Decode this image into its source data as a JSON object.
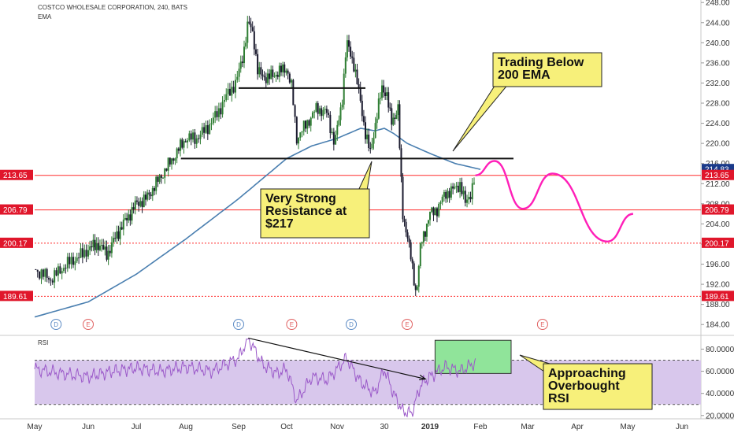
{
  "header": {
    "title": "COSTCO WHOLESALE CORPORATION, 240, BATS",
    "indicator": "EMA"
  },
  "rsi_label": "RSI",
  "colors": {
    "candle_up": "#2e7d32",
    "candle_down": "#1a1a2e",
    "ema": "#4a7fb0",
    "support_line": "#ff2b2b",
    "projection": "#ff1fb8",
    "rsi_line": "#9b59c9",
    "rsi_band": "#d8c7ec",
    "callout_fill": "#f7f07a",
    "overbought_box": "#90e49a",
    "price_label_bg": "#e0162b",
    "price_label_blue": "#1a3a8a"
  },
  "callouts": {
    "trading_below": [
      "Trading Below",
      "200 EMA"
    ],
    "resistance": [
      "Very Strong",
      "Resistance at",
      "$217"
    ],
    "overbought": [
      "Approaching",
      "Overbought",
      "RSI"
    ]
  },
  "events": {
    "dividends": [
      "D",
      "D",
      "D"
    ],
    "earnings": [
      "E",
      "E",
      "E",
      "E"
    ]
  },
  "chart_data": [
    {
      "type": "candlestick",
      "title": "COSTCO WHOLESALE CORPORATION, 240, BATS",
      "x_tick_labels": [
        "May",
        "Jun",
        "Jul",
        "Aug",
        "Sep",
        "Oct",
        "Nov",
        "30",
        "2019",
        "Feb",
        "Mar",
        "Apr",
        "May",
        "Jun"
      ],
      "y_tick_labels": [
        "248.00",
        "244.00",
        "240.00",
        "236.00",
        "232.00",
        "228.00",
        "224.00",
        "220.00",
        "216.00",
        "212.00",
        "208.00",
        "204.00",
        "200.00",
        "196.00",
        "192.00",
        "188.00",
        "184.00"
      ],
      "ylim": [
        182,
        248.5
      ],
      "price_labels": [
        {
          "value": 214.83,
          "label": "214.83",
          "style": "blue"
        },
        {
          "value": 213.65,
          "label": "213.65",
          "style": "red"
        },
        {
          "value": 206.79,
          "label": "206.79",
          "style": "red"
        },
        {
          "value": 200.17,
          "label": "200.17",
          "style": "red"
        },
        {
          "value": 189.61,
          "label": "189.61",
          "style": "red"
        }
      ],
      "horizontal_levels": [
        {
          "value": 213.65,
          "style": "solid",
          "color": "red"
        },
        {
          "value": 206.79,
          "style": "solid",
          "color": "red"
        },
        {
          "value": 200.17,
          "style": "dotted",
          "color": "red"
        },
        {
          "value": 189.61,
          "style": "dotted",
          "color": "red"
        }
      ],
      "trend_levels": [
        {
          "value": 231.0,
          "from_month": 4.0,
          "to_month": 6.6,
          "label": "upper range"
        },
        {
          "value": 217.0,
          "from_month": 2.9,
          "to_month": 9.7,
          "label": "resistance"
        }
      ],
      "price_path": [
        {
          "t": 0.0,
          "price": 195
        },
        {
          "t": 0.3,
          "price": 193
        },
        {
          "t": 0.6,
          "price": 196
        },
        {
          "t": 0.9,
          "price": 198
        },
        {
          "t": 1.0,
          "price": 199
        },
        {
          "t": 1.2,
          "price": 200
        },
        {
          "t": 1.4,
          "price": 198
        },
        {
          "t": 1.6,
          "price": 202
        },
        {
          "t": 1.8,
          "price": 205
        },
        {
          "t": 2.0,
          "price": 208
        },
        {
          "t": 2.2,
          "price": 209
        },
        {
          "t": 2.4,
          "price": 212
        },
        {
          "t": 2.6,
          "price": 215
        },
        {
          "t": 2.8,
          "price": 218
        },
        {
          "t": 3.0,
          "price": 221
        },
        {
          "t": 3.2,
          "price": 221
        },
        {
          "t": 3.4,
          "price": 223
        },
        {
          "t": 3.6,
          "price": 226
        },
        {
          "t": 3.8,
          "price": 230
        },
        {
          "t": 3.95,
          "price": 232
        },
        {
          "t": 4.1,
          "price": 238
        },
        {
          "t": 4.2,
          "price": 244
        },
        {
          "t": 4.3,
          "price": 242
        },
        {
          "t": 4.4,
          "price": 234
        },
        {
          "t": 4.6,
          "price": 233
        },
        {
          "t": 4.8,
          "price": 234
        },
        {
          "t": 5.0,
          "price": 235
        },
        {
          "t": 5.1,
          "price": 231
        },
        {
          "t": 5.2,
          "price": 221
        },
        {
          "t": 5.4,
          "price": 224
        },
        {
          "t": 5.6,
          "price": 227
        },
        {
          "t": 5.8,
          "price": 226
        },
        {
          "t": 5.95,
          "price": 220
        },
        {
          "t": 6.1,
          "price": 228
        },
        {
          "t": 6.2,
          "price": 240
        },
        {
          "t": 6.35,
          "price": 236
        },
        {
          "t": 6.5,
          "price": 228
        },
        {
          "t": 6.6,
          "price": 222
        },
        {
          "t": 6.7,
          "price": 218
        },
        {
          "t": 6.85,
          "price": 226
        },
        {
          "t": 6.95,
          "price": 231
        },
        {
          "t": 7.05,
          "price": 230
        },
        {
          "t": 7.15,
          "price": 224
        },
        {
          "t": 7.3,
          "price": 227
        },
        {
          "t": 7.35,
          "price": 216
        },
        {
          "t": 7.4,
          "price": 206
        },
        {
          "t": 7.5,
          "price": 202
        },
        {
          "t": 7.6,
          "price": 196
        },
        {
          "t": 7.7,
          "price": 190
        },
        {
          "t": 7.8,
          "price": 200
        },
        {
          "t": 7.9,
          "price": 203
        },
        {
          "t": 8.0,
          "price": 206
        },
        {
          "t": 8.15,
          "price": 207
        },
        {
          "t": 8.3,
          "price": 210
        },
        {
          "t": 8.5,
          "price": 211
        },
        {
          "t": 8.6,
          "price": 212
        },
        {
          "t": 8.7,
          "price": 208
        },
        {
          "t": 8.8,
          "price": 210
        },
        {
          "t": 8.9,
          "price": 213.65
        }
      ],
      "ema_path": [
        {
          "t": 0.0,
          "value": 185.5
        },
        {
          "t": 1.0,
          "value": 188.5
        },
        {
          "t": 2.0,
          "value": 194
        },
        {
          "t": 3.0,
          "value": 201
        },
        {
          "t": 3.5,
          "value": 205
        },
        {
          "t": 4.0,
          "value": 209
        },
        {
          "t": 4.5,
          "value": 213
        },
        {
          "t": 5.0,
          "value": 217
        },
        {
          "t": 5.5,
          "value": 219.5
        },
        {
          "t": 6.0,
          "value": 221
        },
        {
          "t": 6.5,
          "value": 223
        },
        {
          "t": 6.8,
          "value": 222.5
        },
        {
          "t": 7.0,
          "value": 223
        },
        {
          "t": 7.2,
          "value": 222
        },
        {
          "t": 7.5,
          "value": 220
        },
        {
          "t": 8.0,
          "value": 218
        },
        {
          "t": 8.5,
          "value": 216
        },
        {
          "t": 9.0,
          "value": 214.83
        }
      ],
      "projection_path": [
        {
          "t": 8.9,
          "price": 213.65
        },
        {
          "t": 9.3,
          "price": 216.5
        },
        {
          "t": 9.9,
          "price": 207
        },
        {
          "t": 10.5,
          "price": 214
        },
        {
          "t": 11.6,
          "price": 200.5
        },
        {
          "t": 12.1,
          "price": 206
        }
      ]
    },
    {
      "type": "line",
      "title": "RSI",
      "y_tick_labels": [
        "80.0000",
        "60.0000",
        "40.0000",
        "20.0000"
      ],
      "ylim": [
        17,
        91
      ],
      "band": [
        30,
        70
      ],
      "series": [
        {
          "values": [
            {
              "t": 0.0,
              "v": 62
            },
            {
              "t": 0.5,
              "v": 58
            },
            {
              "t": 1.0,
              "v": 55
            },
            {
              "t": 1.5,
              "v": 60
            },
            {
              "t": 2.0,
              "v": 63
            },
            {
              "t": 2.5,
              "v": 60
            },
            {
              "t": 3.0,
              "v": 64
            },
            {
              "t": 3.5,
              "v": 60
            },
            {
              "t": 4.0,
              "v": 72
            },
            {
              "t": 4.2,
              "v": 90
            },
            {
              "t": 4.5,
              "v": 66
            },
            {
              "t": 4.8,
              "v": 58
            },
            {
              "t": 5.0,
              "v": 62
            },
            {
              "t": 5.2,
              "v": 33
            },
            {
              "t": 5.5,
              "v": 55
            },
            {
              "t": 5.8,
              "v": 52
            },
            {
              "t": 6.2,
              "v": 72
            },
            {
              "t": 6.5,
              "v": 50
            },
            {
              "t": 6.8,
              "v": 40
            },
            {
              "t": 7.0,
              "v": 62
            },
            {
              "t": 7.2,
              "v": 40
            },
            {
              "t": 7.4,
              "v": 24
            },
            {
              "t": 7.6,
              "v": 22
            },
            {
              "t": 7.8,
              "v": 48
            },
            {
              "t": 8.0,
              "v": 55
            },
            {
              "t": 8.3,
              "v": 64
            },
            {
              "t": 8.6,
              "v": 60
            },
            {
              "t": 8.9,
              "v": 68
            }
          ]
        }
      ],
      "trendline": [
        {
          "t": 4.2,
          "v": 90
        },
        {
          "t": 7.9,
          "v": 53
        }
      ],
      "overbought_box": {
        "t_from": 8.1,
        "t_to": 9.65,
        "v_from": 58,
        "v_to": 88
      }
    }
  ]
}
